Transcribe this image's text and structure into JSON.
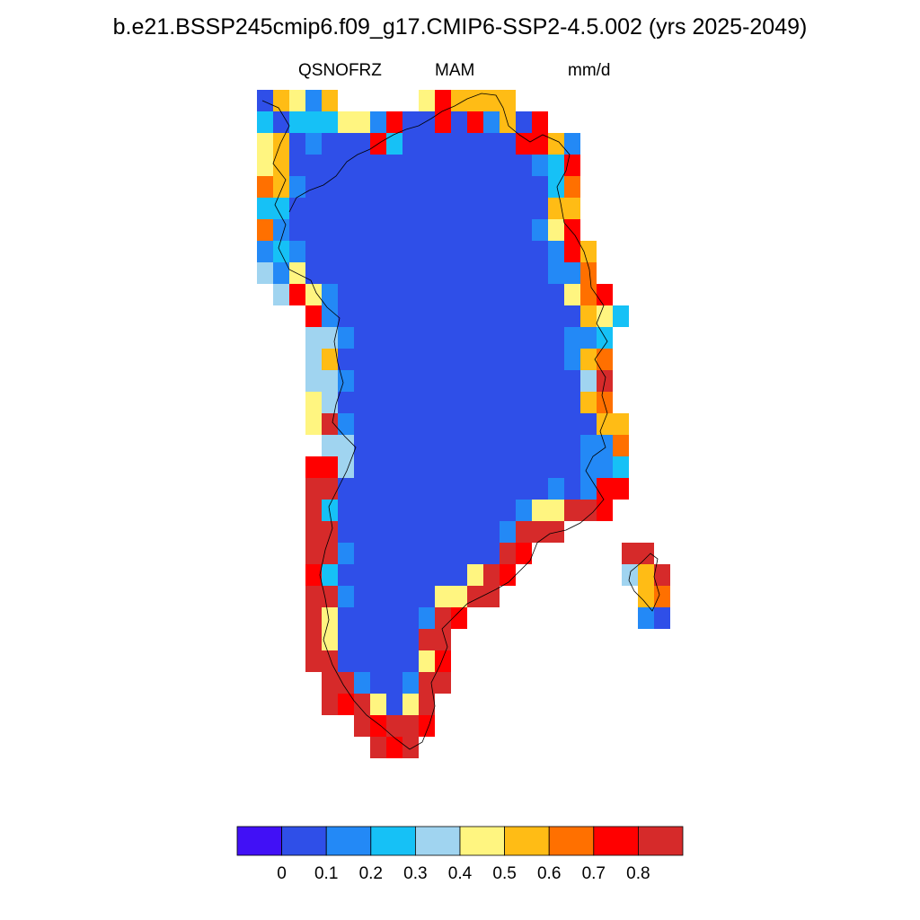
{
  "title": "b.e21.BSSP245cmip6.f09_g17.CMIP6-SSP2-4.5.002 (yrs 2025-2049)",
  "variable": "QSNOFRZ",
  "season": "MAM",
  "units": "mm/d",
  "colorbar": {
    "colors": [
      "#4110f6",
      "#2f4fe8",
      "#2389f6",
      "#16c1f6",
      "#a0d4f0",
      "#fff580",
      "#ffbc15",
      "#ff7000",
      "#ff0000",
      "#d62a2a"
    ],
    "tick_labels": [
      "0",
      "0.1",
      "0.2",
      "0.3",
      "0.4",
      "0.5",
      "0.6",
      "0.7",
      "0.8"
    ]
  },
  "chart_data": {
    "type": "heatmap",
    "title": "b.e21.BSSP245cmip6.f09_g17.CMIP6-SSP2-4.5.002 (yrs 2025-2049)",
    "variable": "QSNOFRZ",
    "season": "MAM",
    "units": "mm/d",
    "region": "Greenland",
    "levels": [
      0,
      0.1,
      0.2,
      0.3,
      0.4,
      0.5,
      0.6,
      0.7,
      0.8
    ],
    "pattern": "interior ice sheet near 0.05-0.1 mm/d; coastal margins 0.2-0.8+ mm/d, highest (>0.8) along southern and southwestern coasts"
  }
}
